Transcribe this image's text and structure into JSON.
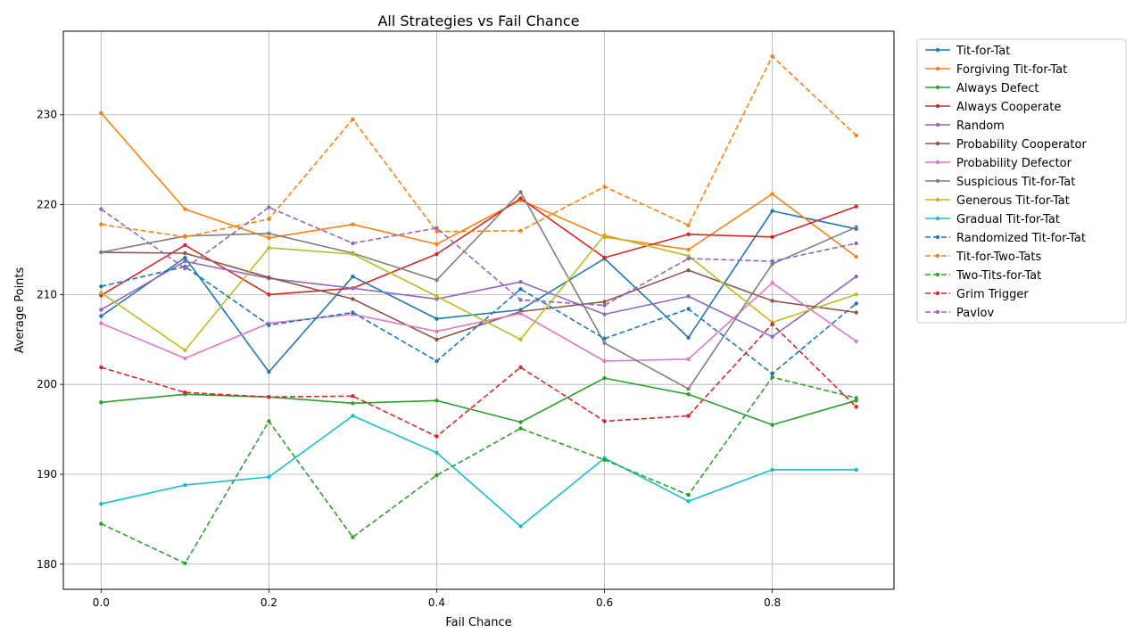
{
  "chart_data": {
    "type": "line",
    "title": "All Strategies vs Fail Chance",
    "xlabel": "Fail Chance",
    "ylabel": "Average Points",
    "xlim": [
      -0.045,
      0.945
    ],
    "ylim": [
      177.2,
      239.3
    ],
    "x_ticks": [
      0.0,
      0.2,
      0.4,
      0.6,
      0.8
    ],
    "x_tick_labels": [
      "0.0",
      "0.2",
      "0.4",
      "0.6",
      "0.8"
    ],
    "y_ticks": [
      180,
      190,
      200,
      210,
      220,
      230
    ],
    "y_tick_labels": [
      "180",
      "190",
      "200",
      "210",
      "220",
      "230"
    ],
    "grid": true,
    "legend_position": "outside-right-top",
    "x": [
      0.0,
      0.1,
      0.2,
      0.3,
      0.4,
      0.5,
      0.6,
      0.7,
      0.8,
      0.9
    ],
    "series": [
      {
        "name": "Tit-for-Tat",
        "color": "#1f77b4",
        "style": "solid",
        "values": [
          207.6,
          214.1,
          201.4,
          212.0,
          207.3,
          208.3,
          214.0,
          205.2,
          219.3,
          217.3
        ]
      },
      {
        "name": "Forgiving Tit-for-Tat",
        "color": "#ff7f0e",
        "style": "solid",
        "values": [
          230.2,
          219.5,
          216.3,
          217.8,
          215.6,
          220.5,
          216.4,
          215.0,
          221.2,
          214.2
        ]
      },
      {
        "name": "Always Defect",
        "color": "#2ca02c",
        "style": "solid",
        "values": [
          198.0,
          198.9,
          198.6,
          197.9,
          198.2,
          195.8,
          200.7,
          198.9,
          195.5,
          198.2
        ]
      },
      {
        "name": "Always Cooperate",
        "color": "#d62728",
        "style": "solid",
        "values": [
          209.9,
          215.5,
          210.0,
          210.7,
          214.5,
          220.7,
          214.1,
          216.7,
          216.4,
          219.8
        ]
      },
      {
        "name": "Random",
        "color": "#9467bd",
        "style": "solid",
        "values": [
          208.3,
          213.7,
          211.8,
          210.7,
          209.5,
          211.4,
          207.8,
          209.8,
          205.3,
          212.0
        ]
      },
      {
        "name": "Probability Cooperator",
        "color": "#8c564b",
        "style": "solid",
        "values": [
          214.7,
          214.6,
          211.9,
          209.5,
          205.0,
          208.1,
          209.2,
          212.7,
          209.3,
          208.0
        ]
      },
      {
        "name": "Probability Defector",
        "color": "#e377c2",
        "style": "solid",
        "values": [
          206.8,
          202.9,
          206.8,
          207.8,
          205.9,
          207.9,
          202.6,
          202.8,
          211.3,
          204.8
        ]
      },
      {
        "name": "Suspicious Tit-for-Tat",
        "color": "#7f7f7f",
        "style": "solid",
        "values": [
          214.7,
          216.5,
          216.8,
          214.6,
          211.6,
          221.4,
          204.6,
          199.5,
          213.4,
          217.5
        ]
      },
      {
        "name": "Generous Tit-for-Tat",
        "color": "#bcbd22",
        "style": "solid",
        "values": [
          210.2,
          203.8,
          215.2,
          214.5,
          209.8,
          205.0,
          216.6,
          214.3,
          206.9,
          210.0
        ]
      },
      {
        "name": "Gradual Tit-for-Tat",
        "color": "#17becf",
        "style": "solid",
        "values": [
          186.7,
          188.8,
          189.7,
          196.5,
          192.4,
          184.2,
          191.8,
          187.0,
          190.5,
          190.5
        ]
      },
      {
        "name": "Randomized Tit-for-Tat",
        "color": "#1f77b4",
        "style": "dashed",
        "values": [
          210.9,
          213.1,
          206.6,
          208.0,
          202.6,
          210.6,
          205.1,
          208.4,
          201.2,
          209.0
        ]
      },
      {
        "name": "Tit-for-Two-Tats",
        "color": "#ff7f0e",
        "style": "dashed",
        "values": [
          217.8,
          216.4,
          218.4,
          229.5,
          217.0,
          217.1,
          222.0,
          217.7,
          236.5,
          227.7
        ]
      },
      {
        "name": "Two-Tits-for-Tat",
        "color": "#2ca02c",
        "style": "dashed",
        "values": [
          184.5,
          180.1,
          195.9,
          183.0,
          189.9,
          195.1,
          191.6,
          187.7,
          200.8,
          198.5
        ]
      },
      {
        "name": "Grim Trigger",
        "color": "#d62728",
        "style": "dashed",
        "values": [
          201.9,
          199.1,
          198.6,
          198.7,
          194.2,
          201.9,
          195.9,
          196.5,
          206.7,
          197.5
        ]
      },
      {
        "name": "Pavlov",
        "color": "#9467bd",
        "style": "dashed",
        "values": [
          219.5,
          212.9,
          219.7,
          215.7,
          217.4,
          209.4,
          208.8,
          214.0,
          213.7,
          215.7
        ]
      }
    ]
  }
}
